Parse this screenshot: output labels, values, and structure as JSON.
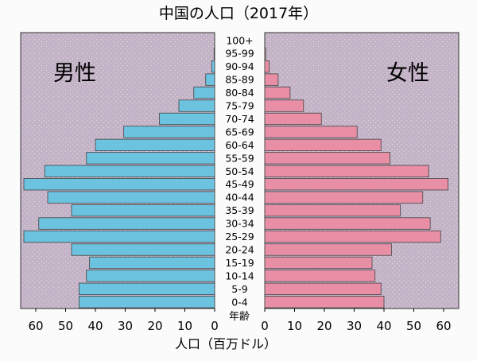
{
  "chart_data": {
    "type": "bar",
    "title": "中国の人口（2017年）",
    "xlabel": "人口（百万ドル）",
    "age_axis_label": "年齢",
    "male_label": "男性",
    "female_label": "女性",
    "categories": [
      "0-4",
      "5-9",
      "10-14",
      "15-19",
      "20-24",
      "25-29",
      "30-34",
      "35-39",
      "40-44",
      "45-49",
      "50-54",
      "55-59",
      "60-64",
      "65-69",
      "70-74",
      "75-79",
      "80-84",
      "85-89",
      "90-94",
      "95-99",
      "100+"
    ],
    "series": [
      {
        "name": "男性",
        "values": [
          45.5,
          45.5,
          43,
          42,
          48,
          64,
          59,
          48,
          56,
          64,
          57,
          43,
          40,
          30.5,
          18.5,
          12,
          7,
          3,
          1,
          0.2,
          0
        ]
      },
      {
        "name": "女性",
        "values": [
          40,
          39,
          37,
          36,
          42.5,
          59,
          55.5,
          45.5,
          53,
          61.5,
          55,
          42,
          39,
          31,
          19,
          13,
          8.5,
          4.5,
          1.5,
          0.3,
          0
        ]
      }
    ],
    "x_ticks": [
      "60",
      "50",
      "40",
      "30",
      "20",
      "10",
      "0"
    ],
    "xlim": [
      0,
      65
    ],
    "colors": {
      "male": "#6cc3e0",
      "female": "#e88fa6",
      "panel": "#c2b3c7",
      "dots": "#f4d4de"
    }
  }
}
